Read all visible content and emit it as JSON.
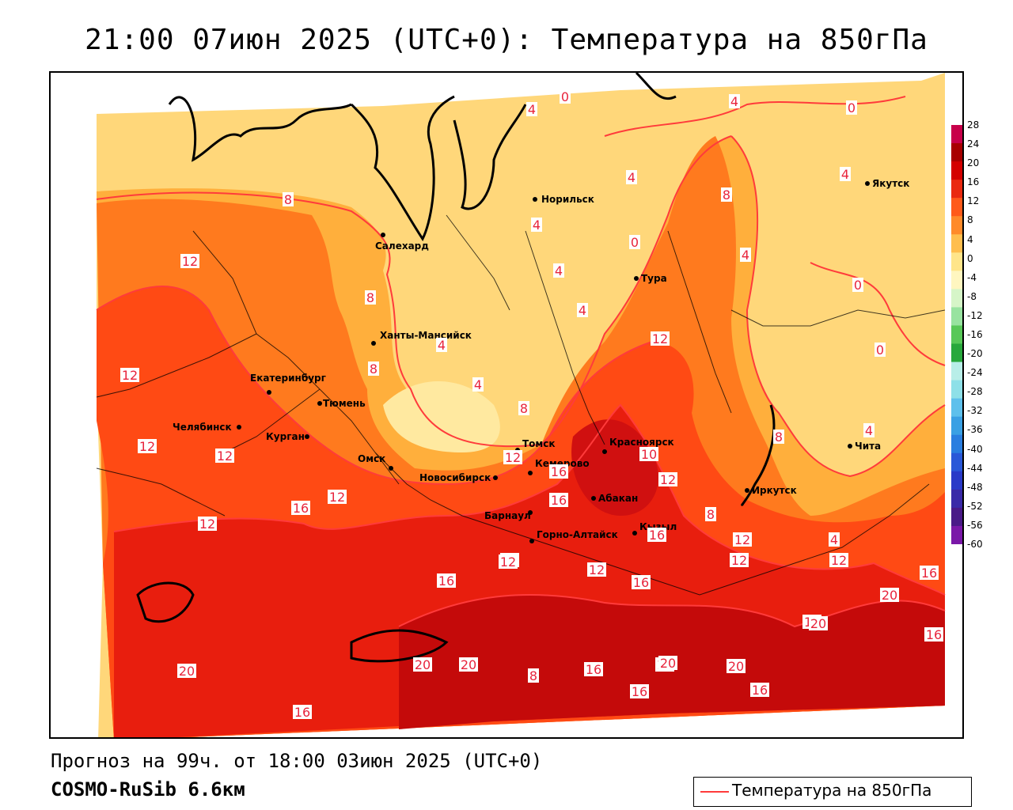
{
  "title": "21:00 07июн 2025 (UTC+0): Температура на 850гПа",
  "forecast_text": "Прогноз на 99ч. от 18:00 03июн 2025 (UTC+0)",
  "model_text": "COSMO-RuSib 6.6км",
  "legend": {
    "label": "Температура на 850гПа",
    "line_color": "#ff3b3b"
  },
  "colorbar": {
    "ticks": [
      "28",
      "24",
      "20",
      "16",
      "12",
      "8",
      "4",
      "0",
      "-4",
      "-8",
      "-12",
      "-16",
      "-20",
      "-24",
      "-28",
      "-32",
      "-36",
      "-40",
      "-44",
      "-48",
      "-52",
      "-56",
      "-60"
    ],
    "colors": [
      "#c8004a",
      "#a80000",
      "#d40000",
      "#ea2a10",
      "#ff5a1a",
      "#ff8a2a",
      "#ffbe4e",
      "#ffe58a",
      "#fff6c0",
      "#d6f5c8",
      "#98e3a0",
      "#58c858",
      "#28a83c",
      "#b8eee8",
      "#8ee0e8",
      "#5ec0ec",
      "#3aa0e4",
      "#2a7ee0",
      "#2a58d8",
      "#2a3ac8",
      "#3a2aa8",
      "#4a1a88",
      "#7a18a8"
    ]
  },
  "cities": [
    {
      "name": "Норильск"
    },
    {
      "name": "Салехард"
    },
    {
      "name": "Тура"
    },
    {
      "name": "Якутск"
    },
    {
      "name": "Ханты-Мансийск"
    },
    {
      "name": "Екатеринбург"
    },
    {
      "name": "Тюмень"
    },
    {
      "name": "Челябинск"
    },
    {
      "name": "Курган"
    },
    {
      "name": "Омск"
    },
    {
      "name": "Новосибирск"
    },
    {
      "name": "Томск"
    },
    {
      "name": "Кемерово"
    },
    {
      "name": "Красноярск"
    },
    {
      "name": "Абакан"
    },
    {
      "name": "Барнаул"
    },
    {
      "name": "Горно-Алтайск"
    },
    {
      "name": "Кызыл"
    },
    {
      "name": "Иркутск"
    },
    {
      "name": "Чита"
    }
  ],
  "contour_labels": [
    "0",
    "4",
    "4",
    "0",
    "4",
    "4",
    "0",
    "8",
    "4",
    "4",
    "8",
    "4",
    "4",
    "12",
    "8",
    "8",
    "4",
    "8",
    "4",
    "0",
    "0",
    "12",
    "12",
    "4",
    "8",
    "12",
    "12",
    "12",
    "16",
    "12",
    "16",
    "10",
    "16",
    "12",
    "12",
    "8",
    "16",
    "12",
    "12",
    "4",
    "12",
    "16",
    "12",
    "12",
    "16",
    "20",
    "16",
    "20",
    "20",
    "8",
    "16",
    "12",
    "16",
    "20",
    "16",
    "20",
    "16",
    "16",
    "20",
    "16",
    "20",
    "16",
    "12"
  ]
}
